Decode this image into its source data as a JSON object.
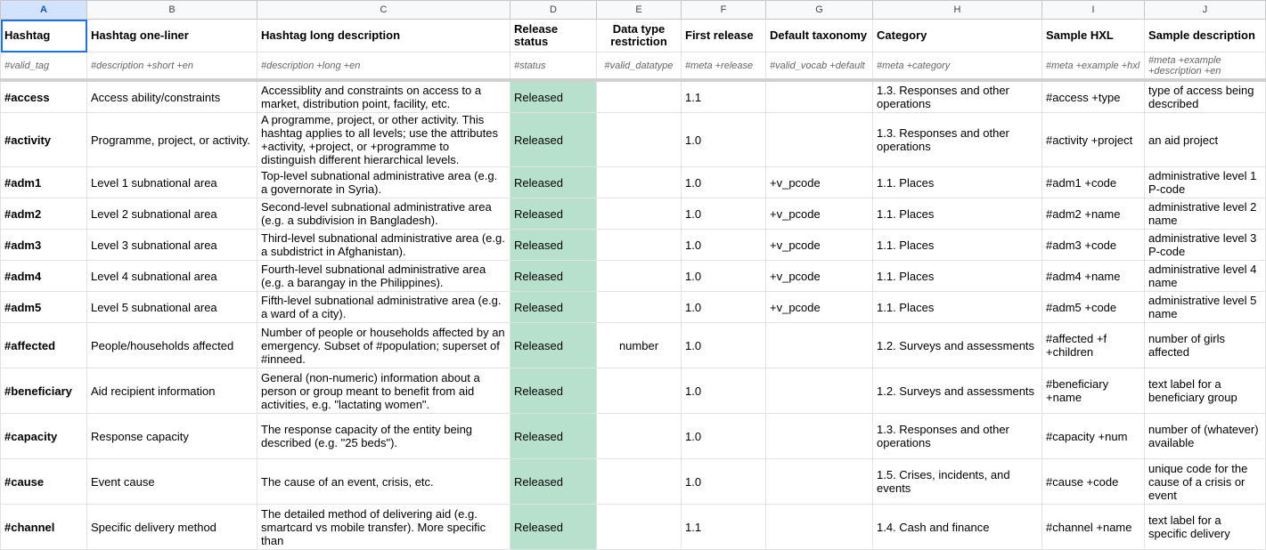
{
  "columns": [
    "A",
    "B",
    "C",
    "D",
    "E",
    "F",
    "G",
    "H",
    "I",
    "J"
  ],
  "headers": [
    "Hashtag",
    "Hashtag one-liner",
    "Hashtag long description",
    "Release status",
    "Data type restriction",
    "First release",
    "Default taxonomy",
    "Category",
    "Sample HXL",
    "Sample description"
  ],
  "hxl_row": [
    "#valid_tag",
    "#description +short +en",
    "#description +long +en",
    "#status",
    "#valid_datatype",
    "#meta +release",
    "#valid_vocab +default",
    "#meta +category",
    "#meta +example +hxl",
    "#meta +example +description +en"
  ],
  "rows": [
    {
      "tag": "#access",
      "short": "Access ability/constraints",
      "long": "Accessiblity and constraints on access to a market, distribution point, facility, etc.",
      "status": "Released",
      "datatype": "",
      "release": "1.1",
      "taxonomy": "",
      "category": "1.3. Responses and other operations",
      "sample_hxl": "#access +type",
      "sample_desc": "type of access being described"
    },
    {
      "tag": "#activity",
      "short": "Programme, project, or activity.",
      "long": "A programme, project, or other activity. This hashtag applies to all levels; use the attributes +activity, +project, or +programme to distinguish different hierarchical levels.",
      "status": "Released",
      "datatype": "",
      "release": "1.0",
      "taxonomy": "",
      "category": "1.3. Responses and other operations",
      "sample_hxl": "#activity +project",
      "sample_desc": "an aid project"
    },
    {
      "tag": "#adm1",
      "short": "Level 1 subnational area",
      "long": "Top-level subnational administrative area (e.g. a governorate in Syria).",
      "status": "Released",
      "datatype": "",
      "release": "1.0",
      "taxonomy": "+v_pcode",
      "category": "1.1. Places",
      "sample_hxl": "#adm1 +code",
      "sample_desc": "administrative level 1 P-code"
    },
    {
      "tag": "#adm2",
      "short": "Level 2 subnational area",
      "long": "Second-level subnational administrative area (e.g. a subdivision in Bangladesh).",
      "status": "Released",
      "datatype": "",
      "release": "1.0",
      "taxonomy": "+v_pcode",
      "category": "1.1. Places",
      "sample_hxl": "#adm2 +name",
      "sample_desc": "administrative level 2 name"
    },
    {
      "tag": "#adm3",
      "short": "Level 3 subnational area",
      "long": "Third-level subnational administrative area (e.g. a subdistrict in Afghanistan).",
      "status": "Released",
      "datatype": "",
      "release": "1.0",
      "taxonomy": "+v_pcode",
      "category": "1.1. Places",
      "sample_hxl": "#adm3 +code",
      "sample_desc": "administrative level 3 P-code"
    },
    {
      "tag": "#adm4",
      "short": "Level 4 subnational area",
      "long": "Fourth-level subnational administrative area (e.g. a barangay in the Philippines).",
      "status": "Released",
      "datatype": "",
      "release": "1.0",
      "taxonomy": "+v_pcode",
      "category": "1.1. Places",
      "sample_hxl": "#adm4 +name",
      "sample_desc": "administrative level 4 name"
    },
    {
      "tag": "#adm5",
      "short": "Level 5 subnational area",
      "long": "Fifth-level subnational administrative area (e.g. a ward of a city).",
      "status": "Released",
      "datatype": "",
      "release": "1.0",
      "taxonomy": "+v_pcode",
      "category": "1.1. Places",
      "sample_hxl": "#adm5 +code",
      "sample_desc": "administrative level 5 name"
    },
    {
      "tag": "#affected",
      "short": "People/households affected",
      "long": "Number of people or households affected by an emergency. Subset of #population; superset of #inneed.",
      "status": "Released",
      "datatype": "number",
      "release": "1.0",
      "taxonomy": "",
      "category": "1.2. Surveys and assessments",
      "sample_hxl": "#affected +f +children",
      "sample_desc": "number of girls affected"
    },
    {
      "tag": "#beneficiary",
      "short": "Aid recipient information",
      "long": "General (non-numeric) information about a person or group meant to benefit from aid activities, e.g. \"lactating women\".",
      "status": "Released",
      "datatype": "",
      "release": "1.0",
      "taxonomy": "",
      "category": "1.2. Surveys and assessments",
      "sample_hxl": "#beneficiary +name",
      "sample_desc": "text label for a beneficiary group"
    },
    {
      "tag": "#capacity",
      "short": "Response capacity",
      "long": "The response capacity of the entity being described (e.g. \"25 beds\").",
      "status": "Released",
      "datatype": "",
      "release": "1.0",
      "taxonomy": "",
      "category": "1.3. Responses and other operations",
      "sample_hxl": "#capacity +num",
      "sample_desc": "number of (whatever) available"
    },
    {
      "tag": "#cause",
      "short": "Event cause",
      "long": "The cause of an event, crisis, etc.",
      "status": "Released",
      "datatype": "",
      "release": "1.0",
      "taxonomy": "",
      "category": "1.5. Crises, incidents, and events",
      "sample_hxl": "#cause +code",
      "sample_desc": "unique code for the cause of a crisis or event"
    },
    {
      "tag": "#channel",
      "short": "Specific delivery method",
      "long": "The detailed method of delivering aid (e.g. smartcard vs mobile transfer). More specific than",
      "status": "Released",
      "datatype": "",
      "release": "1.1",
      "taxonomy": "",
      "category": "1.4. Cash and finance",
      "sample_hxl": "#channel +name",
      "sample_desc": "text label for a specific delivery"
    }
  ]
}
